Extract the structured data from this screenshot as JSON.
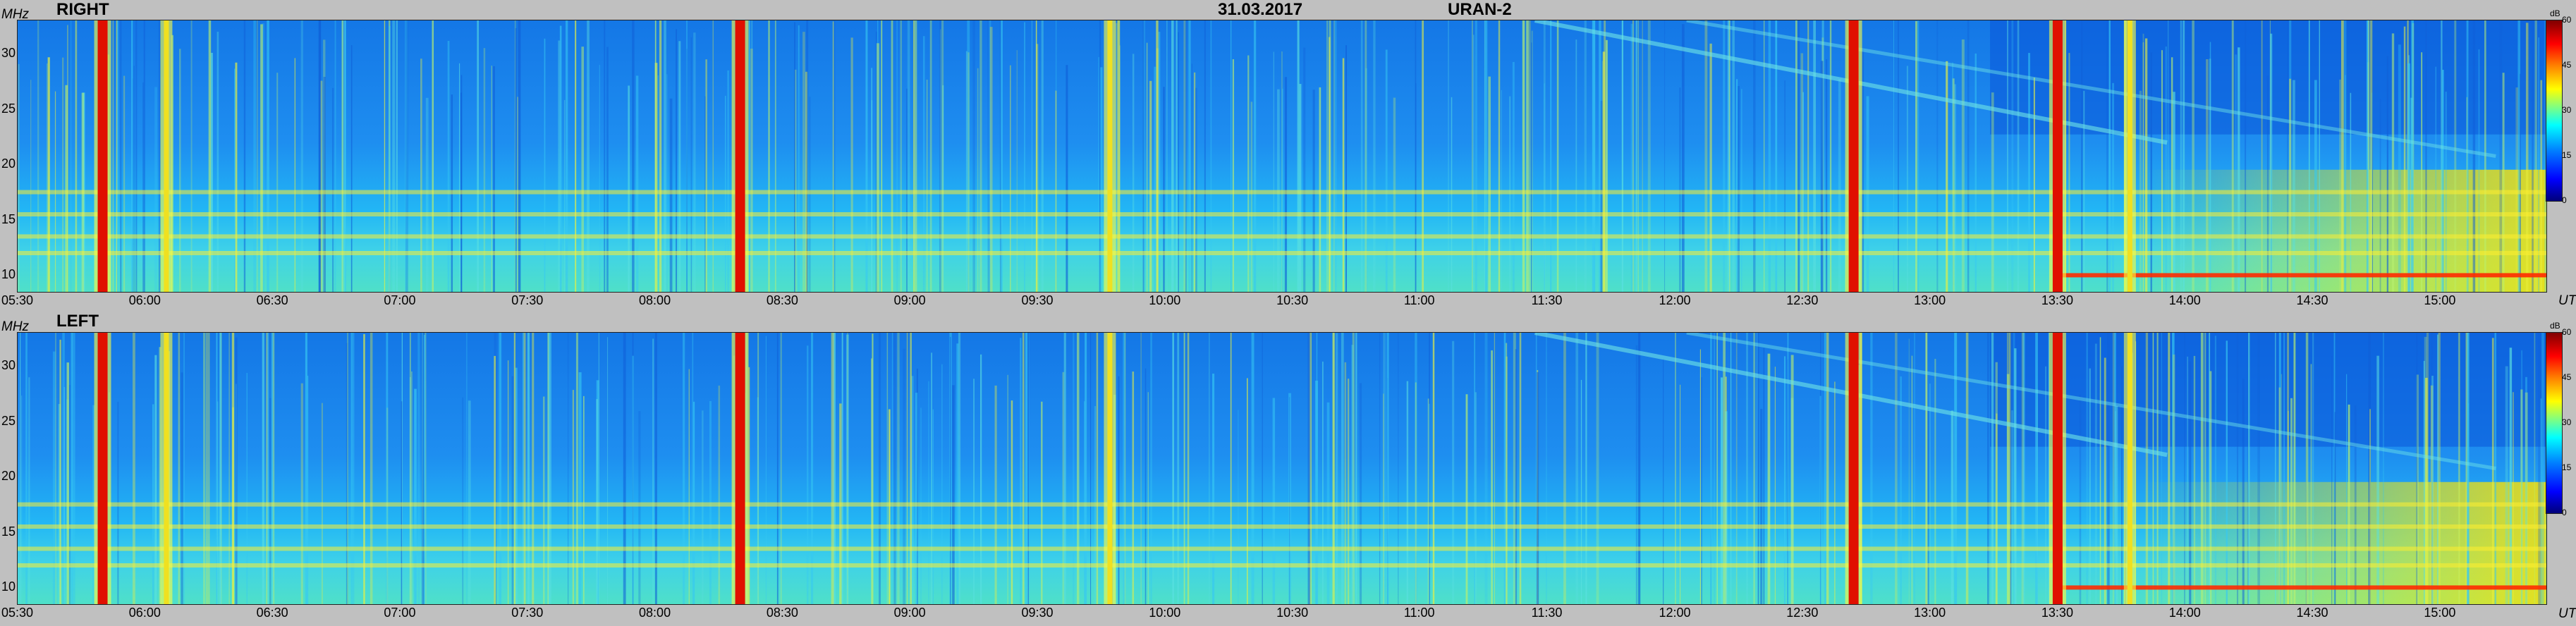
{
  "header": {
    "date": "31.03.2017",
    "instrument": "URAN-2"
  },
  "panels": [
    {
      "label": "RIGHT"
    },
    {
      "label": "LEFT"
    }
  ],
  "axis": {
    "y_unit": "MHz",
    "x_unit": "UT",
    "cbar_unit": "dB",
    "y_ticks": [
      "30",
      "25",
      "20",
      "15",
      "10"
    ],
    "x_ticks": [
      "05:30",
      "06:00",
      "06:30",
      "07:00",
      "07:30",
      "08:00",
      "08:30",
      "09:00",
      "09:30",
      "10:00",
      "10:30",
      "11:00",
      "11:30",
      "12:00",
      "12:30",
      "13:00",
      "13:30",
      "14:00",
      "14:30",
      "15:00"
    ],
    "cbar_ticks": [
      "60",
      "45",
      "30",
      "15",
      "0"
    ]
  },
  "chart_data": {
    "type": "heatmap",
    "title": "31.03.2017 URAN-2",
    "xlabel": "UT",
    "ylabel": "MHz",
    "xlim": [
      "05:30",
      "15:25"
    ],
    "ylim": [
      8.5,
      33
    ],
    "zlim": [
      0,
      60
    ],
    "colorbar_label": "dB",
    "colormap": [
      "#00007a",
      "#0000ff",
      "#0080ff",
      "#00ffff",
      "#80ff80",
      "#ffff00",
      "#ff8000",
      "#ff0000",
      "#800000"
    ],
    "vertical_features_ut": [
      {
        "time": "05:50",
        "type": "strong burst"
      },
      {
        "time": "06:05",
        "type": "moderate"
      },
      {
        "time": "08:20",
        "type": "strong burst"
      },
      {
        "time": "09:47",
        "type": "moderate"
      },
      {
        "time": "12:42",
        "type": "strong burst"
      },
      {
        "time": "13:30",
        "type": "strong burst"
      },
      {
        "time": "13:47",
        "type": "moderate"
      }
    ],
    "horizontal_features_mhz": [
      {
        "freq": 17.5,
        "type": "interference"
      },
      {
        "freq": 15.5,
        "type": "interference"
      },
      {
        "freq": 13.5,
        "type": "interference"
      },
      {
        "freq": 12.0,
        "type": "interference"
      },
      {
        "freq": 10.0,
        "type": "strong interference after 13:30"
      }
    ],
    "series": [
      {
        "name": "RIGHT"
      },
      {
        "name": "LEFT"
      }
    ]
  }
}
